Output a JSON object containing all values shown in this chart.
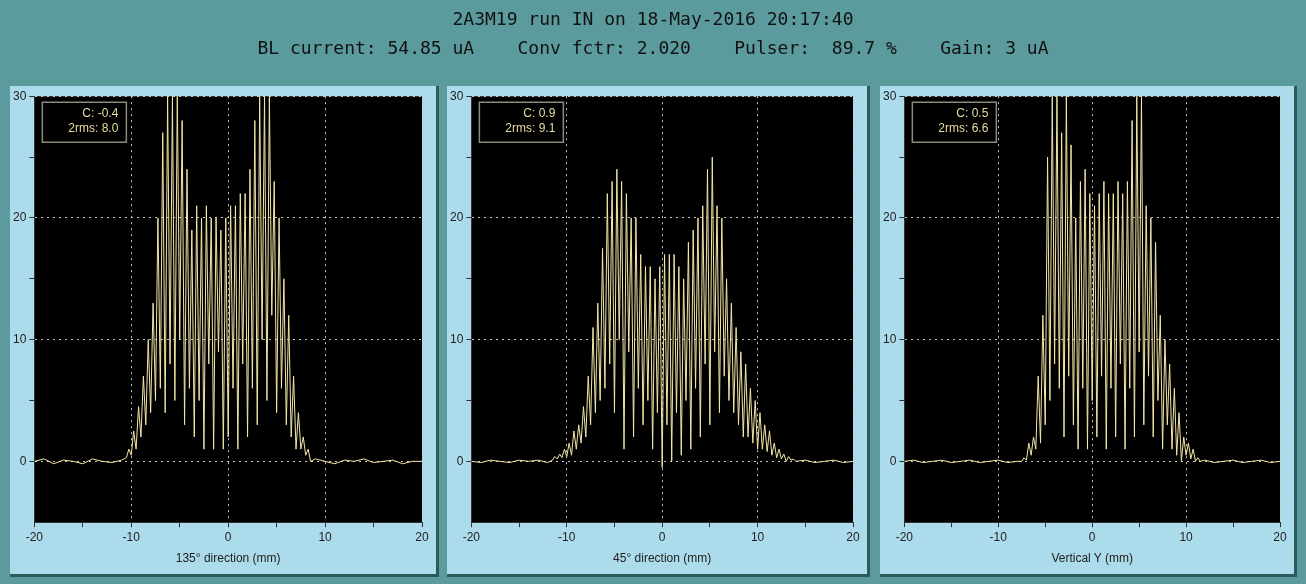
{
  "chart_data": [
    {
      "type": "other",
      "title": "2A3M19 run IN on 18-May-2016 20:17:40",
      "subtitle": "BL current: 54.85 uA    Conv fctr: 2.020    Pulser:  89.7 %    Gain: 3 uA"
    },
    {
      "type": "line",
      "xlabel": "135° direction (mm)",
      "annotations": [
        "C: -0.4",
        "2rms: 8.0"
      ],
      "xlim": [
        -20,
        20
      ],
      "ylim": [
        -5,
        30
      ],
      "xticks": [
        -20,
        {
          "value": -15,
          "label": null
        },
        -10,
        {
          "value": -5,
          "label": null
        },
        0,
        {
          "value": 5,
          "label": null
        },
        10,
        {
          "value": 15,
          "label": null
        },
        20
      ],
      "yticks": [
        0,
        {
          "value": 5,
          "label": null
        },
        10,
        {
          "value": 15,
          "label": null
        },
        20,
        {
          "value": 25,
          "label": null
        },
        30
      ],
      "grid": true,
      "legend": false,
      "marker": "none",
      "line_style": "solid",
      "series": [
        {
          "color": "#f3e6a6",
          "x": [
            -20,
            -19,
            -18,
            -17,
            -16,
            -15,
            -14,
            -13,
            -12,
            -11,
            -10.5,
            -10.25,
            -10,
            -9.75,
            -9.5,
            -9.25,
            -9,
            -8.75,
            -8.5,
            -8.25,
            -8,
            -7.75,
            -7.5,
            -7.25,
            -7,
            -6.75,
            -6.5,
            -6.25,
            -6,
            -5.75,
            -5.5,
            -5.25,
            -5,
            -4.75,
            -4.5,
            -4.25,
            -4,
            -3.75,
            -3.5,
            -3.25,
            -3,
            -2.75,
            -2.5,
            -2.25,
            -2,
            -1.75,
            -1.5,
            -1.25,
            -1,
            -0.75,
            -0.5,
            -0.25,
            0,
            0.25,
            0.5,
            0.75,
            1,
            1.25,
            1.5,
            1.75,
            2,
            2.25,
            2.5,
            2.75,
            3,
            3.25,
            3.5,
            3.75,
            4,
            4.25,
            4.5,
            4.75,
            5,
            5.25,
            5.5,
            5.75,
            6,
            6.25,
            6.5,
            6.75,
            7,
            7.25,
            7.5,
            7.75,
            8,
            8.25,
            8.5,
            9,
            10,
            11,
            12,
            13,
            14,
            15,
            16,
            17,
            18,
            19,
            20
          ],
          "values": [
            0,
            0.2,
            -0.2,
            0.1,
            0,
            -0.2,
            0.2,
            0,
            -0.1,
            0.1,
            0.3,
            1,
            0.5,
            2.5,
            1,
            4.5,
            2,
            7,
            3,
            10,
            4,
            13,
            5,
            20,
            6,
            27,
            4,
            30,
            8,
            30,
            5,
            30,
            10,
            28,
            3,
            24,
            6,
            19,
            2,
            21,
            5,
            20,
            1,
            21,
            8,
            20,
            1,
            20,
            9,
            19,
            1,
            20,
            2,
            21,
            6,
            21,
            1,
            22,
            8,
            22,
            2,
            24,
            6,
            28,
            3,
            30,
            10,
            30,
            5,
            30,
            12,
            23,
            4,
            20,
            6,
            15,
            3,
            12,
            2,
            7,
            1,
            4,
            1,
            2,
            0.5,
            1,
            0,
            0.2,
            0,
            -0.2,
            0.1,
            0,
            0.2,
            -0.1,
            0,
            0.1,
            -0.2,
            0,
            0
          ]
        }
      ]
    },
    {
      "type": "line",
      "xlabel": "45° direction (mm)",
      "annotations": [
        "C: 0.9",
        "2rms: 9.1"
      ],
      "xlim": [
        -20,
        20
      ],
      "ylim": [
        -5,
        30
      ],
      "xticks": [
        -20,
        {
          "value": -15,
          "label": null
        },
        -10,
        {
          "value": -5,
          "label": null
        },
        0,
        {
          "value": 5,
          "label": null
        },
        10,
        {
          "value": 15,
          "label": null
        },
        20
      ],
      "yticks": [
        0,
        {
          "value": 5,
          "label": null
        },
        10,
        {
          "value": 15,
          "label": null
        },
        20,
        {
          "value": 25,
          "label": null
        },
        30
      ],
      "grid": true,
      "legend": false,
      "marker": "none",
      "line_style": "solid",
      "series": [
        {
          "color": "#f3e6a6",
          "x": [
            -20,
            -19,
            -18,
            -17,
            -16,
            -15,
            -14,
            -13,
            -12,
            -11.5,
            -11.25,
            -11,
            -10.75,
            -10.5,
            -10.25,
            -10,
            -9.75,
            -9.5,
            -9.25,
            -9,
            -8.75,
            -8.5,
            -8.25,
            -8,
            -7.75,
            -7.5,
            -7.25,
            -7,
            -6.75,
            -6.5,
            -6.25,
            -6,
            -5.75,
            -5.5,
            -5.25,
            -5,
            -4.75,
            -4.5,
            -4.25,
            -4,
            -3.75,
            -3.5,
            -3.25,
            -3,
            -2.75,
            -2.5,
            -2.25,
            -2,
            -1.75,
            -1.5,
            -1.25,
            -1,
            -0.75,
            -0.5,
            -0.25,
            0,
            0.25,
            0.5,
            0.75,
            1,
            1.25,
            1.5,
            1.75,
            2,
            2.25,
            2.5,
            2.75,
            3,
            3.25,
            3.5,
            3.75,
            4,
            4.25,
            4.5,
            4.75,
            5,
            5.25,
            5.5,
            5.75,
            6,
            6.25,
            6.5,
            6.75,
            7,
            7.25,
            7.5,
            7.75,
            8,
            8.25,
            8.5,
            8.75,
            9,
            9.25,
            9.5,
            9.75,
            10,
            10.25,
            10.5,
            10.75,
            11,
            11.25,
            11.5,
            11.75,
            12,
            12.25,
            12.5,
            12.75,
            13,
            13.25,
            13.5,
            13.75,
            14,
            15,
            16,
            17,
            18,
            19,
            20
          ],
          "values": [
            0,
            -0.1,
            0.1,
            0,
            -0.1,
            0.1,
            0,
            0.1,
            -0.1,
            0.1,
            0.4,
            0.2,
            0.6,
            0.3,
            1,
            0.4,
            1.5,
            0.5,
            2.5,
            1,
            3,
            1.5,
            4.5,
            2,
            7,
            3,
            11,
            4,
            13,
            5,
            17.5,
            6,
            22,
            8,
            23,
            4,
            24,
            10,
            23,
            1,
            22,
            9,
            20,
            2,
            20,
            6,
            17,
            3,
            16,
            5,
            16,
            1,
            15,
            4,
            16,
            -0.5,
            17,
            3,
            17,
            0,
            17,
            4,
            16,
            0.5,
            15,
            5,
            18,
            1,
            19,
            6,
            20,
            2,
            21,
            8,
            24,
            3,
            25,
            9,
            21,
            4,
            20,
            7,
            15,
            5,
            13,
            4,
            11,
            3,
            9,
            2,
            8,
            2,
            6,
            1.5,
            5,
            1,
            4,
            1,
            3,
            0.8,
            2.5,
            0.5,
            1.5,
            0.3,
            1,
            0.2,
            0.6,
            0,
            0.4,
            0.1,
            0.2,
            0,
            0.1,
            -0.1,
            0,
            0.1,
            -0.1,
            0
          ]
        }
      ]
    },
    {
      "type": "line",
      "xlabel": "Vertical Y (mm)",
      "annotations": [
        "C: 0.5",
        "2rms: 6.6"
      ],
      "xlim": [
        -20,
        20
      ],
      "ylim": [
        -5,
        30
      ],
      "xticks": [
        -20,
        {
          "value": -15,
          "label": null
        },
        -10,
        {
          "value": -5,
          "label": null
        },
        0,
        {
          "value": 5,
          "label": null
        },
        10,
        {
          "value": 15,
          "label": null
        },
        20
      ],
      "yticks": [
        0,
        {
          "value": 5,
          "label": null
        },
        10,
        {
          "value": 15,
          "label": null
        },
        20,
        {
          "value": 25,
          "label": null
        },
        30
      ],
      "grid": true,
      "legend": false,
      "marker": "none",
      "line_style": "solid",
      "series": [
        {
          "color": "#f3e6a6",
          "x": [
            -20,
            -19,
            -18,
            -17,
            -16,
            -15,
            -14,
            -13,
            -12,
            -11,
            -10,
            -9,
            -8,
            -7.5,
            -7.25,
            -7,
            -6.75,
            -6.5,
            -6.25,
            -6,
            -5.75,
            -5.5,
            -5.25,
            -5,
            -4.75,
            -4.5,
            -4.25,
            -4,
            -3.75,
            -3.5,
            -3.25,
            -3,
            -2.75,
            -2.5,
            -2.25,
            -2,
            -1.75,
            -1.5,
            -1.25,
            -1,
            -0.75,
            -0.5,
            -0.25,
            0,
            0.25,
            0.5,
            0.75,
            1,
            1.25,
            1.5,
            1.75,
            2,
            2.25,
            2.5,
            2.75,
            3,
            3.25,
            3.5,
            3.75,
            4,
            4.25,
            4.5,
            4.75,
            5,
            5.25,
            5.5,
            5.75,
            6,
            6.25,
            6.5,
            6.75,
            7,
            7.25,
            7.5,
            7.75,
            8,
            8.25,
            8.5,
            8.75,
            9,
            9.25,
            9.5,
            9.75,
            10,
            10.25,
            10.5,
            10.75,
            11,
            11.25,
            11.5,
            12,
            13,
            14,
            15,
            16,
            17,
            18,
            19,
            20
          ],
          "values": [
            0,
            0.1,
            -0.1,
            0,
            0.1,
            -0.1,
            0,
            0.1,
            -0.1,
            0,
            0.1,
            -0.1,
            0,
            0,
            0.3,
            0.1,
            1.5,
            0.5,
            2,
            1,
            7,
            1.5,
            12,
            3,
            25,
            5,
            30,
            8,
            30,
            6,
            27,
            2,
            30,
            7,
            26,
            3,
            20,
            1,
            23,
            6,
            24,
            1,
            22,
            5,
            21,
            2,
            22,
            7,
            23,
            1,
            22,
            6,
            22,
            2,
            23,
            8,
            22,
            1,
            23,
            6,
            28,
            2,
            30,
            9,
            30,
            3,
            21,
            7,
            20,
            2,
            18,
            5,
            12,
            1,
            10,
            3,
            8,
            1,
            6,
            0.5,
            4,
            0,
            2,
            0.5,
            1.5,
            0.2,
            1,
            0,
            0.3,
            0,
            0.1,
            -0.1,
            0,
            0.1,
            -0.1,
            0,
            0.1,
            -0.1,
            0
          ]
        }
      ]
    }
  ]
}
